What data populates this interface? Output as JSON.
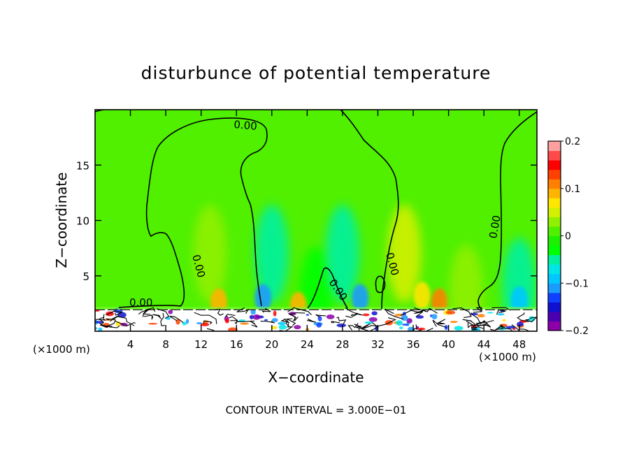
{
  "chart_data": {
    "type": "heatmap",
    "title": "disturbunce of potential temperature",
    "xlabel": "X−coordinate",
    "ylabel": "Z−coordinate",
    "x_unit": "(×1000 m)",
    "x_unit_right": "(×1000 m)",
    "xlim": [
      0,
      50
    ],
    "ylim": [
      0,
      20
    ],
    "x_ticks": [
      4,
      8,
      12,
      16,
      20,
      24,
      28,
      32,
      36,
      40,
      44,
      48
    ],
    "y_ticks": [
      5,
      10,
      15
    ],
    "footer": "CONTOUR INTERVAL = 3.000E−01",
    "contour_labels": [
      "0.00",
      "0.00",
      "0.00",
      "0.00",
      "0.00",
      "0.00"
    ],
    "colorbar": {
      "range": [
        -0.2,
        0.2
      ],
      "tick_values": [
        0.2,
        0.1,
        0,
        -0.1,
        -0.2
      ],
      "tick_labels": [
        "0.2",
        "0.1",
        "0",
        "−0.1",
        "−0.2"
      ],
      "colors": [
        "#8b00a8",
        "#4a00b0",
        "#1010d0",
        "#1040ff",
        "#1a9cff",
        "#00c8ff",
        "#00e6e6",
        "#00f0a0",
        "#00ff00",
        "#1cf000",
        "#50f000",
        "#90f000",
        "#d2f000",
        "#ffe600",
        "#ffb400",
        "#ff8000",
        "#ff4000",
        "#ff0000",
        "#ff4a4a",
        "#ffa0a0"
      ]
    },
    "field": {
      "background_value": 0.0,
      "surface_layer_top": 2,
      "anomalies": [
        {
          "x": 13,
          "z": 7,
          "value": 0.03
        },
        {
          "x": 14,
          "z": 2.6,
          "value": 0.08
        },
        {
          "x": 20,
          "z": 7,
          "value": -0.04
        },
        {
          "x": 19,
          "z": 3.0,
          "value": -0.11
        },
        {
          "x": 25,
          "z": 3.2,
          "value": -0.03
        },
        {
          "x": 23,
          "z": 2.3,
          "value": 0.09
        },
        {
          "x": 28,
          "z": 7,
          "value": -0.05
        },
        {
          "x": 30,
          "z": 3.0,
          "value": -0.12
        },
        {
          "x": 35,
          "z": 7,
          "value": 0.04
        },
        {
          "x": 37,
          "z": 3.2,
          "value": 0.07
        },
        {
          "x": 39,
          "z": 2.6,
          "value": 0.1
        },
        {
          "x": 42,
          "z": 3.4,
          "value": 0.03
        },
        {
          "x": 48,
          "z": 4.0,
          "value": -0.04
        },
        {
          "x": 48,
          "z": 2.8,
          "value": -0.1
        }
      ]
    }
  }
}
